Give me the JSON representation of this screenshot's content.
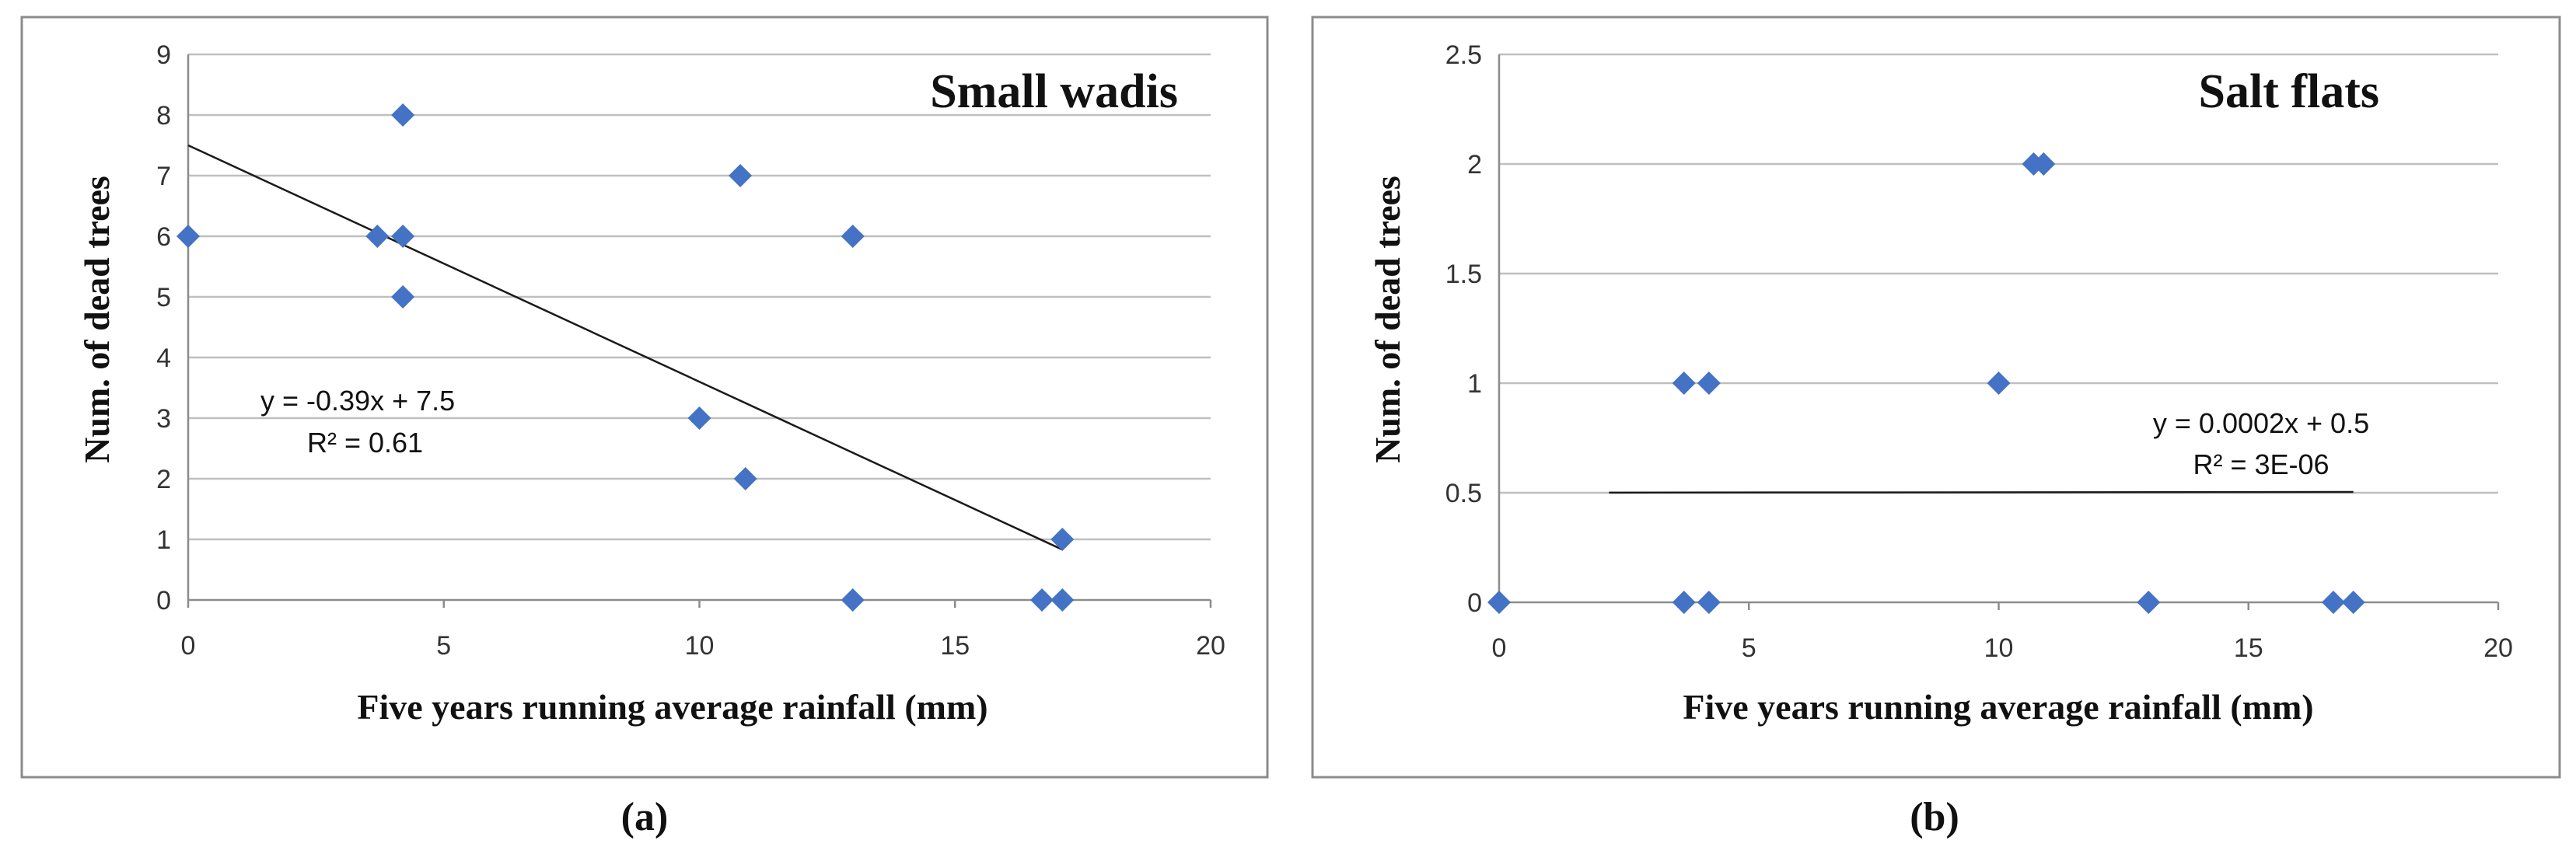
{
  "chart_data": [
    {
      "type": "scatter",
      "title": "Small wadis",
      "xlabel": "Five years running average rainfall (mm)",
      "ylabel": "Num. of dead  trees",
      "caption": "(a)",
      "xlim": [
        0,
        20
      ],
      "ylim": [
        0,
        9
      ],
      "xticks": [
        0,
        5,
        10,
        15,
        20
      ],
      "yticks": [
        0,
        1,
        2,
        3,
        4,
        5,
        6,
        7,
        8,
        9
      ],
      "grid": true,
      "marker_color": "#4472c4",
      "points": [
        {
          "x": 0,
          "y": 6
        },
        {
          "x": 3.7,
          "y": 6
        },
        {
          "x": 4.2,
          "y": 8
        },
        {
          "x": 4.2,
          "y": 6
        },
        {
          "x": 4.2,
          "y": 5
        },
        {
          "x": 10.0,
          "y": 3
        },
        {
          "x": 10.8,
          "y": 7
        },
        {
          "x": 10.9,
          "y": 2
        },
        {
          "x": 13.0,
          "y": 6
        },
        {
          "x": 13.0,
          "y": 0
        },
        {
          "x": 16.7,
          "y": 0
        },
        {
          "x": 17.1,
          "y": 0
        },
        {
          "x": 17.1,
          "y": 1
        }
      ],
      "trendline": {
        "slope": -0.39,
        "intercept": 7.5,
        "x_range": [
          0,
          17.1
        ]
      },
      "equation": "y = -0.39x + 7.5",
      "r2": "R² = 0.61"
    },
    {
      "type": "scatter",
      "title": "Salt flats",
      "xlabel": "Five years running average rainfall (mm)",
      "ylabel": "Num. of dead  trees",
      "caption": "(b)",
      "xlim": [
        0,
        20
      ],
      "ylim": [
        0,
        2.5
      ],
      "xticks": [
        0,
        5,
        10,
        15,
        20
      ],
      "yticks": [
        0,
        0.5,
        1,
        1.5,
        2,
        2.5
      ],
      "grid": true,
      "marker_color": "#4472c4",
      "points": [
        {
          "x": 0,
          "y": 0
        },
        {
          "x": 3.7,
          "y": 0
        },
        {
          "x": 4.2,
          "y": 0
        },
        {
          "x": 3.7,
          "y": 1
        },
        {
          "x": 4.2,
          "y": 1
        },
        {
          "x": 10.0,
          "y": 1
        },
        {
          "x": 10.7,
          "y": 2
        },
        {
          "x": 10.9,
          "y": 2
        },
        {
          "x": 13.0,
          "y": 0
        },
        {
          "x": 16.7,
          "y": 0
        },
        {
          "x": 17.1,
          "y": 0
        }
      ],
      "trendline": {
        "slope": 0.0002,
        "intercept": 0.5,
        "x_range": [
          2.2,
          17.1
        ]
      },
      "equation": "y = 0.0002x + 0.5",
      "r2": "R² = 3E-06"
    }
  ]
}
